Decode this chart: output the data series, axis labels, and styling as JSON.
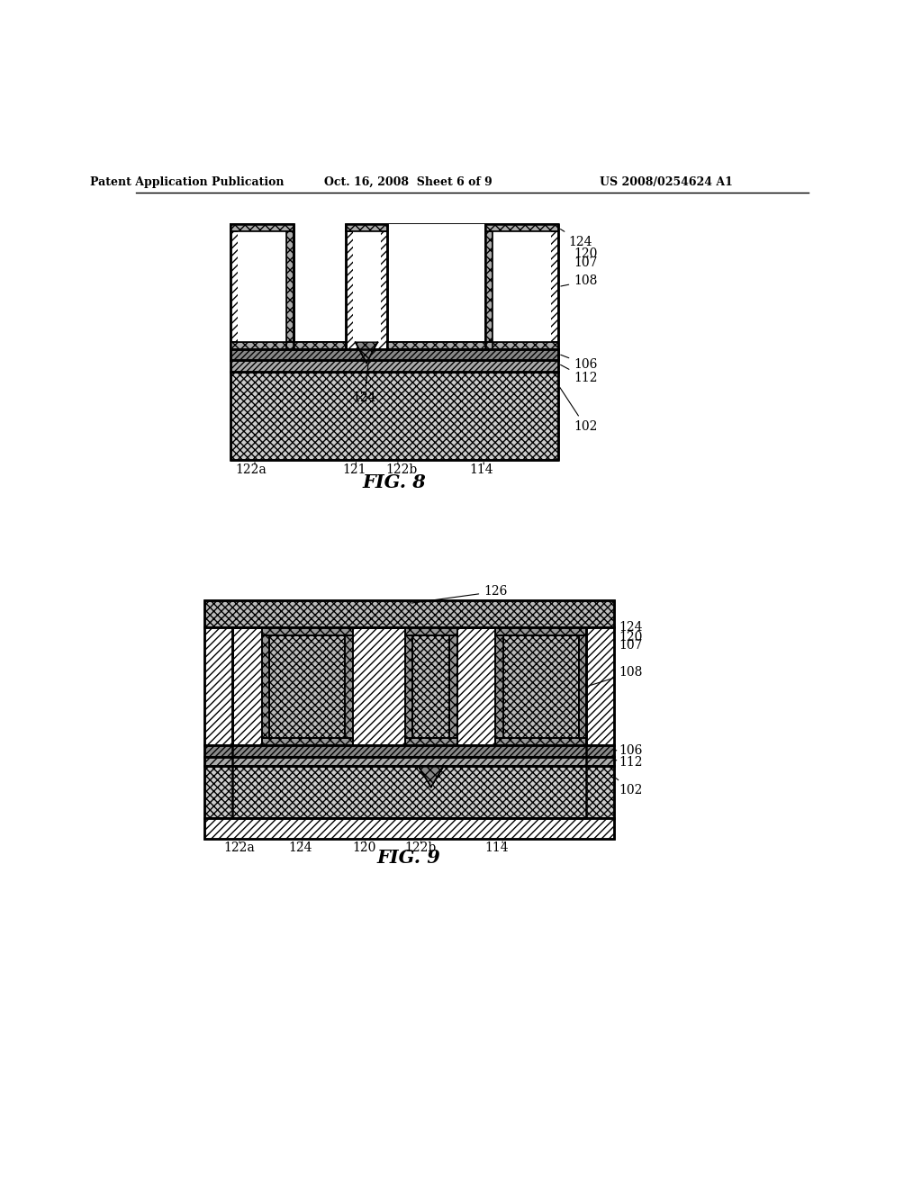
{
  "header_left": "Patent Application Publication",
  "header_mid": "Oct. 16, 2008  Sheet 6 of 9",
  "header_right": "US 2008/0254624 A1",
  "fig8_label": "FIG. 8",
  "fig9_label": "FIG. 9",
  "bg": "#ffffff",
  "lc": "#000000"
}
